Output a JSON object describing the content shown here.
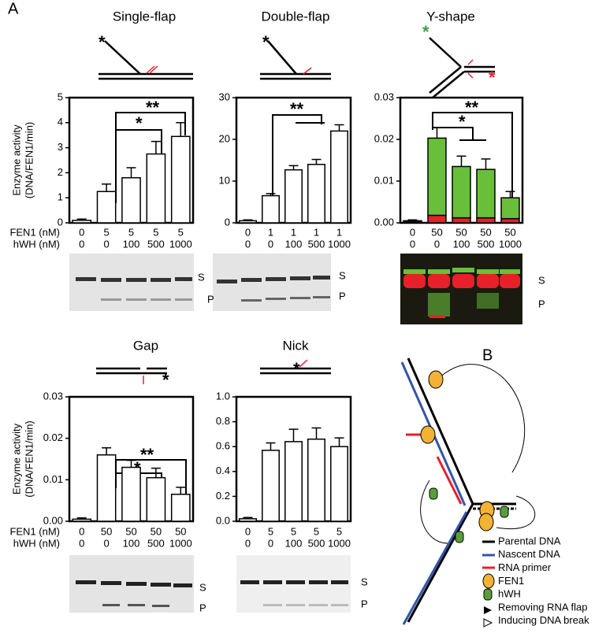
{
  "panels": [
    "A",
    "B"
  ],
  "chart_data": [
    {
      "type": "bar",
      "title": "Single-flap",
      "ylabel": [
        "Enzyme activity",
        "(DNA/FEN1/min)"
      ],
      "row_labels": [
        "FEN1 (nM)",
        "hWH (nM)"
      ],
      "fen1": [
        0,
        5,
        5,
        5,
        5
      ],
      "hwh": [
        0,
        0,
        100,
        500,
        1000
      ],
      "values": [
        0.1,
        1.25,
        1.8,
        2.75,
        3.45
      ],
      "errors": [
        0.05,
        0.3,
        0.4,
        0.5,
        0.55
      ],
      "color": "#ffffff",
      "ylim": [
        0,
        5
      ],
      "yticks": [
        0,
        1,
        2,
        3,
        4,
        5
      ],
      "annotations": [
        "**",
        "*"
      ],
      "gel_labels": [
        "S",
        "P"
      ]
    },
    {
      "type": "bar",
      "title": "Double-flap",
      "fen1": [
        0,
        1,
        1,
        1,
        1
      ],
      "hwh": [
        0,
        0,
        100,
        500,
        1000
      ],
      "values": [
        0.5,
        6.5,
        12.7,
        14,
        22
      ],
      "errors": [
        0.2,
        0.5,
        1,
        1.2,
        1.5
      ],
      "color": "#ffffff",
      "ylim": [
        0,
        30
      ],
      "yticks": [
        0,
        10,
        20,
        30
      ],
      "annotations": [
        "**"
      ],
      "gel_labels": [
        "S",
        "P"
      ]
    },
    {
      "type": "stacked_bar",
      "title": "Y-shape",
      "fen1": [
        0,
        50,
        50,
        50,
        50
      ],
      "hwh": [
        0,
        0,
        100,
        500,
        1000
      ],
      "series": [
        {
          "color": "#e8202a",
          "values": [
            0.0002,
            0.0018,
            0.0012,
            0.0012,
            0.001
          ]
        },
        {
          "color": "#6abf3a",
          "values": [
            0.0003,
            0.0185,
            0.0123,
            0.0116,
            0.005
          ]
        }
      ],
      "errors": [
        0.0002,
        0.0025,
        0.0025,
        0.0025,
        0.0015
      ],
      "ylim": [
        0,
        0.03
      ],
      "yticks": [
        {
          "value": 0,
          "label": "0.00"
        },
        0.01,
        0.02,
        0.03
      ],
      "annotations": [
        "**",
        "*"
      ],
      "gel_labels": [
        "S",
        "P"
      ]
    },
    {
      "type": "bar",
      "title": "Gap",
      "ylabel": [
        "Enzyme activity",
        "(DNA/FEN1/min)"
      ],
      "row_labels": [
        "FEN1 (nM)",
        "hWH (nM)"
      ],
      "fen1": [
        0,
        50,
        50,
        50,
        50
      ],
      "hwh": [
        0,
        0,
        100,
        500,
        1000
      ],
      "values": [
        0.0005,
        0.016,
        0.013,
        0.0105,
        0.0065
      ],
      "errors": [
        0.0003,
        0.0017,
        0.0017,
        0.0023,
        0.0017
      ],
      "color": "#ffffff",
      "ylim": [
        0,
        0.03
      ],
      "yticks": [
        {
          "value": 0,
          "label": "0.00"
        },
        0.01,
        0.02,
        0.03
      ],
      "annotations": [
        "**",
        "*"
      ],
      "gel_labels": [
        "S",
        "P"
      ]
    },
    {
      "type": "bar",
      "title": "Nick",
      "fen1": [
        0,
        5,
        5,
        5,
        5
      ],
      "hwh": [
        0,
        0,
        100,
        500,
        1000
      ],
      "values": [
        0.02,
        0.57,
        0.64,
        0.66,
        0.6
      ],
      "errors": [
        0.01,
        0.06,
        0.1,
        0.09,
        0.07
      ],
      "color": "#ffffff",
      "ylim": [
        0,
        1
      ],
      "yticks": [
        {
          "value": 0,
          "label": "0.0"
        },
        0.2,
        0.4,
        0.6,
        0.8,
        {
          "value": 1,
          "label": "1.0"
        }
      ],
      "gel_labels": [
        "S",
        "P"
      ]
    }
  ],
  "legend": [
    "Parental DNA",
    "Nascent DNA",
    "RNA primer",
    "FEN1",
    "hWH",
    "Removing RNA flap",
    "Inducing DNA break"
  ]
}
